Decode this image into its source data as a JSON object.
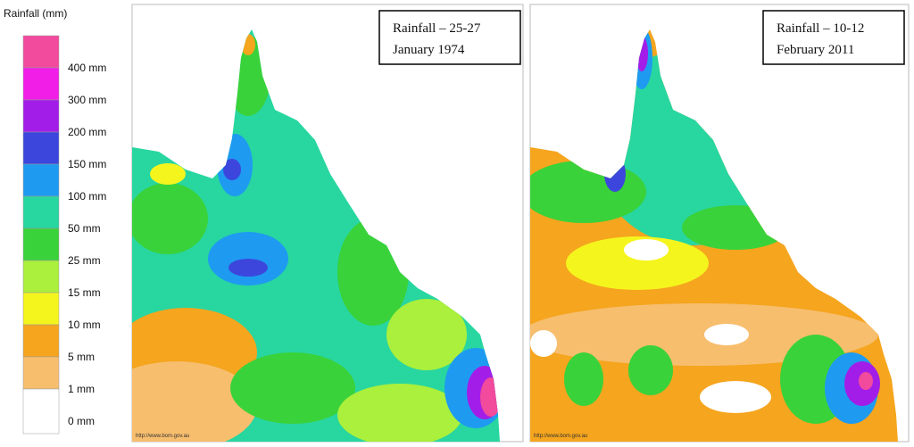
{
  "legend": {
    "title": "Rainfall (mm)",
    "items": [
      {
        "label": "400 mm",
        "color": "#f24a9c"
      },
      {
        "label": "300 mm",
        "color": "#f01ee6"
      },
      {
        "label": "200 mm",
        "color": "#a21ee8"
      },
      {
        "label": "150 mm",
        "color": "#3c46dc"
      },
      {
        "label": "100 mm",
        "color": "#1e9bf0"
      },
      {
        "label": "50 mm",
        "color": "#28d6a0"
      },
      {
        "label": "25 mm",
        "color": "#3ad23a"
      },
      {
        "label": "15 mm",
        "color": "#aaf03c"
      },
      {
        "label": "10 mm",
        "color": "#f5f51e"
      },
      {
        "label": "5 mm",
        "color": "#f5a51e"
      },
      {
        "label": "1 mm",
        "color": "#f7be6e"
      },
      {
        "label": "0 mm",
        "color": "#ffffff"
      }
    ]
  },
  "panels": [
    {
      "title_line1": "Rainfall – 25-27",
      "title_line2": "January 1974",
      "credit": "http://www.bom.gov.au"
    },
    {
      "title_line1": "Rainfall – 10-12",
      "title_line2": "February 2011",
      "credit": "http://www.bom.gov.au"
    }
  ]
}
